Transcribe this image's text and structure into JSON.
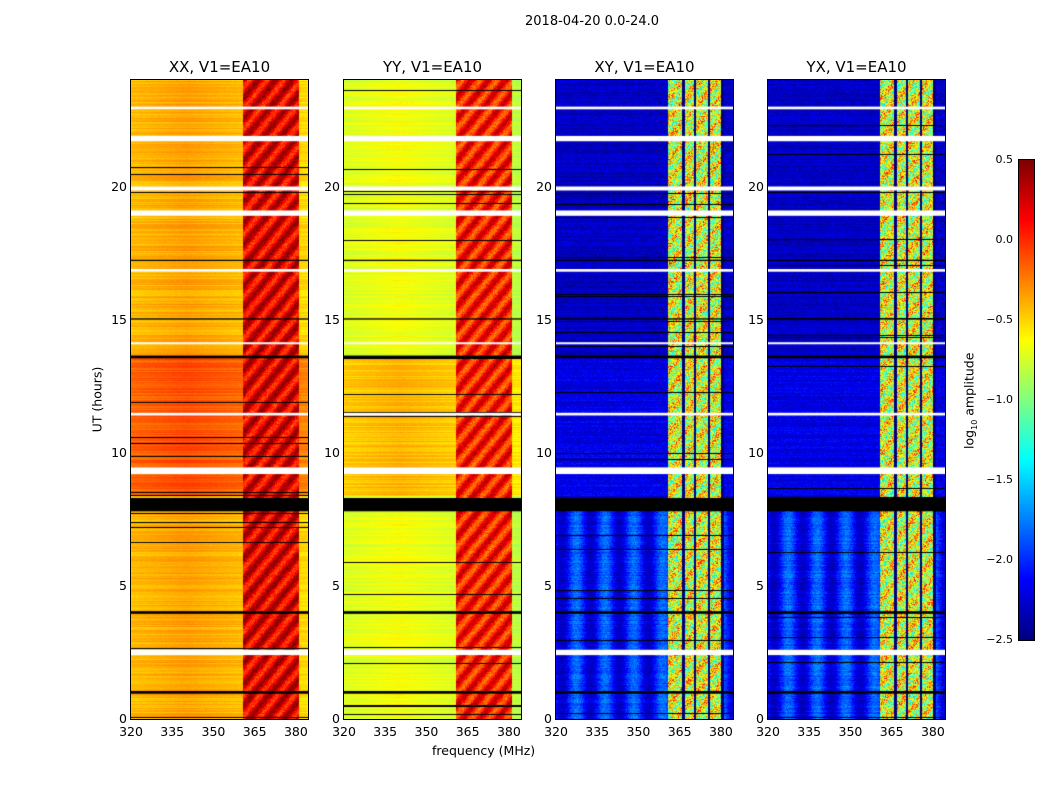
{
  "chart_data": {
    "type": "heatmap",
    "title": "2018-04-20 0.0-24.0",
    "xlabel": "frequency (MHz)",
    "ylabel": "UT (hours)",
    "xlim": [
      320,
      384.4
    ],
    "ylim": [
      0,
      24
    ],
    "xticks": [
      "320",
      "335",
      "350",
      "365",
      "380"
    ],
    "xtick_values": [
      320,
      335,
      350,
      365,
      380
    ],
    "yticks": [
      "0",
      "5",
      "10",
      "15",
      "20"
    ],
    "ytick_values": [
      0,
      5,
      10,
      15,
      20
    ],
    "colormap": "jet",
    "colorbar": {
      "label_main": "log",
      "label_sub": "10",
      "label_rest": " amplitude",
      "range": [
        -2.5,
        0.5
      ],
      "ticks": [
        "0.5",
        "0.0",
        "−0.5",
        "−1.0",
        "−1.5",
        "−2.0",
        "−2.5"
      ],
      "tick_values": [
        0.5,
        0.0,
        -0.5,
        -1.0,
        -1.5,
        -2.0,
        -2.5
      ]
    },
    "rfi_band_mhz": [
      360.7,
      381
    ],
    "flagged_channels_mhz": [
      366.2,
      370.5,
      375.6,
      380.4
    ],
    "flagged_time_black_ut": [
      [
        7.8,
        8.3
      ],
      [
        13.55,
        13.65
      ],
      [
        3.95,
        4.05
      ],
      [
        0.95,
        1.05
      ],
      [
        17.2,
        17.25
      ],
      [
        15.0,
        15.05
      ]
    ],
    "flagged_time_white_ut": [
      [
        9.2,
        9.45
      ],
      [
        18.9,
        19.1
      ],
      [
        19.85,
        20.0
      ],
      [
        21.7,
        21.9
      ],
      [
        22.9,
        23.0
      ],
      [
        2.4,
        2.6
      ],
      [
        16.8,
        16.9
      ],
      [
        14.1,
        14.15
      ],
      [
        11.4,
        11.5
      ]
    ],
    "panels": [
      {
        "title": "XX, V1=EA10",
        "base": -0.35,
        "mid_day": -0.1,
        "rfi": 0.2
      },
      {
        "title": "YY, V1=EA10",
        "base": -0.65,
        "mid_day": -0.4,
        "rfi": 0.05
      },
      {
        "title": "XY, V1=EA10",
        "base": -2.3,
        "mid_day": -2.2,
        "rfi": -0.7
      },
      {
        "title": "YX, V1=EA10",
        "base": -2.3,
        "mid_day": -2.2,
        "rfi": -0.7
      }
    ]
  }
}
